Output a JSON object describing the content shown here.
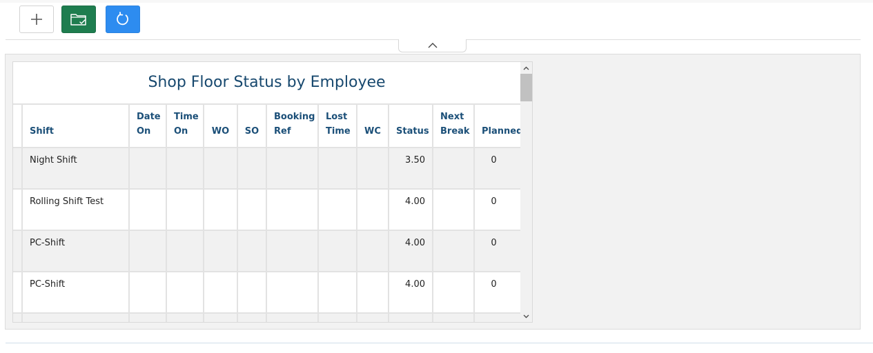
{
  "toolbar": {
    "add": {
      "icon": "plus-icon"
    },
    "open": {
      "icon": "folder-check-icon",
      "color": "#1e7d4f"
    },
    "refresh": {
      "icon": "refresh-icon",
      "color": "#2d8cf0"
    }
  },
  "collapse_toggle": {
    "icon": "chevron-up-icon"
  },
  "widget": {
    "title": "Shop Floor Status by Employee",
    "columns": {
      "shift": "Shift",
      "date_on": [
        "Date",
        "On"
      ],
      "time_on": [
        "Time",
        "On"
      ],
      "wo": "WO",
      "so": "SO",
      "booking_ref": [
        "Booking",
        "Ref"
      ],
      "lost_time": [
        "Lost",
        "Time"
      ],
      "wc": "WC",
      "status": "Status",
      "next_break": [
        "Next",
        "Break"
      ],
      "planned": "Planned"
    },
    "rows": [
      {
        "shift": "Night Shift",
        "date_on": "",
        "time_on": "",
        "wo": "",
        "so": "",
        "booking_ref": "",
        "lost_time": "",
        "wc": "",
        "status": "3.50",
        "next_break": "",
        "planned": "0"
      },
      {
        "shift": "Rolling Shift Test",
        "date_on": "",
        "time_on": "",
        "wo": "",
        "so": "",
        "booking_ref": "",
        "lost_time": "",
        "wc": "",
        "status": "4.00",
        "next_break": "",
        "planned": "0"
      },
      {
        "shift": "PC-Shift",
        "date_on": "",
        "time_on": "",
        "wo": "",
        "so": "",
        "booking_ref": "",
        "lost_time": "",
        "wc": "",
        "status": "4.00",
        "next_break": "",
        "planned": "0"
      },
      {
        "shift": "PC-Shift",
        "date_on": "",
        "time_on": "",
        "wo": "",
        "so": "",
        "booking_ref": "",
        "lost_time": "",
        "wc": "",
        "status": "4.00",
        "next_break": "",
        "planned": "0"
      }
    ]
  },
  "colors": {
    "header_text": "#1b4f78",
    "title_text": "#17486e",
    "row_alt": "#f1f1f1",
    "panel_bg": "#f2f2f2"
  }
}
